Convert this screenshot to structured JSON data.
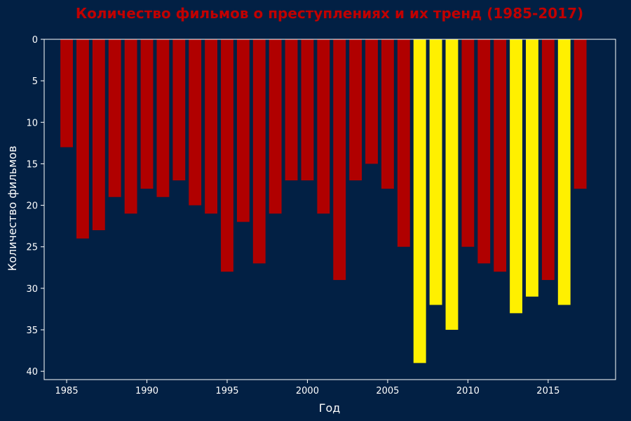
{
  "chart_data": {
    "type": "bar",
    "title": "Количество фильмов о преступлениях и их тренд (1985-2017)",
    "xlabel": "Год",
    "ylabel": "Количество фильмов",
    "x": [
      1985,
      1986,
      1987,
      1988,
      1989,
      1990,
      1991,
      1992,
      1993,
      1994,
      1995,
      1996,
      1997,
      1998,
      1999,
      2000,
      2001,
      2002,
      2003,
      2004,
      2005,
      2006,
      2007,
      2008,
      2009,
      2010,
      2011,
      2012,
      2013,
      2014,
      2015,
      2016,
      2017
    ],
    "values": [
      13,
      24,
      23,
      19,
      21,
      18,
      19,
      17,
      20,
      21,
      28,
      22,
      27,
      21,
      17,
      17,
      21,
      29,
      17,
      15,
      18,
      25,
      39,
      32,
      35,
      25,
      27,
      28,
      33,
      31,
      29,
      32,
      18
    ],
    "highlighted": [
      false,
      false,
      false,
      false,
      false,
      false,
      false,
      false,
      false,
      false,
      false,
      false,
      false,
      false,
      false,
      false,
      false,
      false,
      false,
      false,
      false,
      false,
      true,
      true,
      true,
      false,
      false,
      false,
      true,
      true,
      false,
      true,
      false
    ],
    "xticks": [
      1985,
      1990,
      1995,
      2000,
      2005,
      2010,
      2015
    ],
    "yticks": [
      0,
      5,
      10,
      15,
      20,
      25,
      30,
      35,
      40
    ],
    "xlim": [
      1983.6,
      2019.2
    ],
    "ylim": [
      0,
      41
    ],
    "y_inverted": true,
    "grid": false,
    "legend": "none",
    "colors": {
      "background": "#022044",
      "normal_bar": "#B00000",
      "highlight_bar": "#FFF000",
      "title": "#C00000",
      "axis": "#FFFFFF",
      "text": "#FFFFFF"
    }
  }
}
